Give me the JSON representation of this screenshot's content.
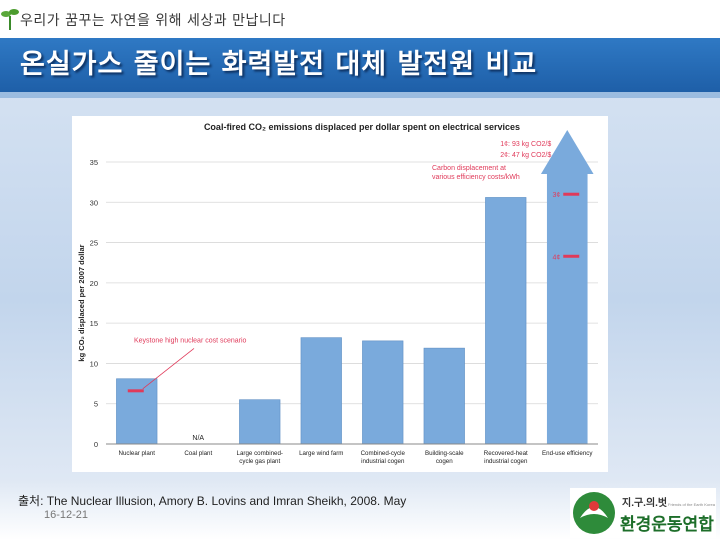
{
  "header": {
    "tagline": "우리가 꿈꾸는 자연을 위해 세상과 만납니다",
    "title": "온실가스 줄이는 화력발전 대체 발전원 비교"
  },
  "footer": {
    "source": "출처: The Nuclear Illusion, Amory B. Lovins and Imran Sheikh, 2008. May",
    "date": "16-12-21"
  },
  "logo": {
    "line1": "지.구.의.벗",
    "line2": "환경운동연합",
    "small": "Friends of the Earth Korea"
  },
  "colors": {
    "bar": "#7aaadc",
    "marker": "#e03a5a",
    "annotation": "#e03a5a",
    "arrow": "#7aaadc",
    "title_bar": "#1e5fa8"
  },
  "chart_data": {
    "type": "bar",
    "title": "Coal-fired CO₂ emissions displaced per dollar spent on electrical services",
    "ylabel": "kg CO₂ displaced per 2007 dollar",
    "xlabel": "",
    "ylim": [
      0,
      35
    ],
    "yticks": [
      0,
      5,
      10,
      15,
      20,
      25,
      30,
      35
    ],
    "grid": true,
    "categories": [
      "Nuclear plant",
      "Coal plant",
      "Large combined-cycle gas plant",
      "Large wind farm",
      "Combined-cycle industrial cogen",
      "Building-scale cogen",
      "Recovered-heat industrial cogen",
      "End-use efficiency"
    ],
    "category_labels": [
      [
        "Nuclear plant"
      ],
      [
        "Coal plant"
      ],
      [
        "Large combined-",
        "cycle gas plant"
      ],
      [
        "Large wind farm"
      ],
      [
        "Combined-cycle",
        "industrial cogen"
      ],
      [
        "Building-scale",
        "cogen"
      ],
      [
        "Recovered-heat",
        "industrial cogen"
      ],
      [
        "End-use efficiency"
      ]
    ],
    "values": [
      8.1,
      0,
      5.5,
      13.2,
      12.8,
      11.9,
      30.6,
      35
    ],
    "bar_note": "N/A",
    "bar_note_category": "Coal plant",
    "open_ended_category": "End-use efficiency",
    "markers": [
      {
        "category": "Nuclear plant",
        "value": 6.6,
        "label": ""
      },
      {
        "category": "End-use efficiency",
        "value": 31.0,
        "label": "3¢"
      },
      {
        "category": "End-use efficiency",
        "value": 23.3,
        "label": "4¢"
      }
    ],
    "annotations": {
      "keystone": "Keystone high nuclear cost scenario",
      "legend_lines": [
        "1¢: 93 kg CO2/$",
        "2¢: 47 kg CO2/$"
      ],
      "carbon_note": [
        "Carbon displacement at",
        "various efficiency costs/kWh"
      ]
    }
  }
}
